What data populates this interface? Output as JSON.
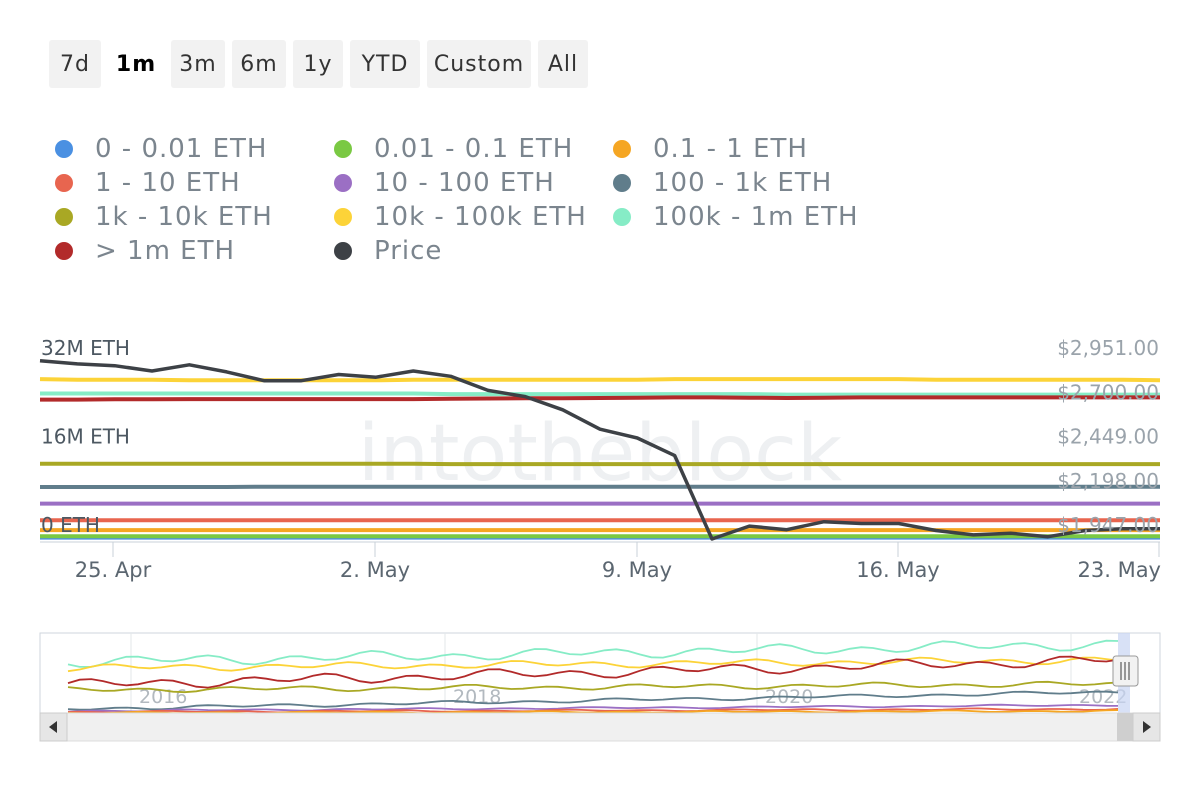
{
  "range_buttons": [
    {
      "label": "7d",
      "active": false
    },
    {
      "label": "1m",
      "active": true
    },
    {
      "label": "3m",
      "active": false
    },
    {
      "label": "6m",
      "active": false
    },
    {
      "label": "1y",
      "active": false
    },
    {
      "label": "YTD",
      "active": false
    },
    {
      "label": "Custom",
      "active": false
    },
    {
      "label": "All",
      "active": false
    }
  ],
  "watermark": "intotheblock",
  "chart_data": {
    "type": "line",
    "legend_placement": "top",
    "grid": false,
    "x_ticks": [
      "25. Apr",
      "2. May",
      "9. May",
      "16. May",
      "23. May"
    ],
    "y_left": {
      "ticks": [
        "0 ETH",
        "16M ETH",
        "32M ETH"
      ],
      "range": [
        0,
        32000000
      ]
    },
    "y_right": {
      "ticks": [
        "$1,947.00",
        "$2,198.00",
        "$2,449.00",
        "$2,700.00",
        "$2,951.00"
      ],
      "range": [
        1947,
        2951
      ]
    },
    "series": [
      {
        "name": "0 - 0.01 ETH",
        "color": "#4a90e2",
        "axis": "left",
        "values": [
          250000,
          250000,
          250000,
          250000,
          250000,
          250000,
          250000,
          250000,
          250000,
          250000,
          250000,
          250000,
          250000,
          250000,
          250000,
          250000,
          250000,
          250000,
          250000,
          250000,
          250000,
          250000,
          250000,
          250000,
          250000,
          250000,
          250000,
          250000,
          250000,
          250000,
          250000
        ]
      },
      {
        "name": "0.01 - 0.1 ETH",
        "color": "#7ac943",
        "axis": "left",
        "values": [
          500000,
          500000,
          500000,
          500000,
          500000,
          500000,
          500000,
          500000,
          500000,
          500000,
          500000,
          500000,
          500000,
          500000,
          500000,
          500000,
          500000,
          500000,
          500000,
          500000,
          500000,
          500000,
          500000,
          500000,
          500000,
          500000,
          500000,
          500000,
          500000,
          500000,
          500000
        ]
      },
      {
        "name": "0.1 - 1 ETH",
        "color": "#f5a623",
        "axis": "left",
        "values": [
          1600000,
          1600000,
          1600000,
          1600000,
          1600000,
          1600000,
          1600000,
          1600000,
          1600000,
          1600000,
          1600000,
          1600000,
          1600000,
          1600000,
          1600000,
          1600000,
          1600000,
          1600000,
          1600000,
          1600000,
          1600000,
          1600000,
          1600000,
          1600000,
          1600000,
          1600000,
          1600000,
          1600000,
          1600000,
          1600000,
          1600000
        ]
      },
      {
        "name": "1 - 10 ETH",
        "color": "#e8654f",
        "axis": "left",
        "values": [
          3400000,
          3400000,
          3400000,
          3400000,
          3400000,
          3400000,
          3400000,
          3400000,
          3400000,
          3400000,
          3400000,
          3400000,
          3400000,
          3400000,
          3400000,
          3400000,
          3400000,
          3400000,
          3400000,
          3400000,
          3400000,
          3400000,
          3400000,
          3400000,
          3400000,
          3400000,
          3400000,
          3400000,
          3400000,
          3400000,
          3400000
        ]
      },
      {
        "name": "10 - 100 ETH",
        "color": "#9b6fc4",
        "axis": "left",
        "values": [
          6400000,
          6400000,
          6400000,
          6400000,
          6400000,
          6400000,
          6400000,
          6400000,
          6400000,
          6400000,
          6400000,
          6400000,
          6400000,
          6400000,
          6400000,
          6400000,
          6400000,
          6400000,
          6400000,
          6400000,
          6400000,
          6400000,
          6400000,
          6400000,
          6400000,
          6400000,
          6400000,
          6400000,
          6400000,
          6400000,
          6400000
        ]
      },
      {
        "name": "100 - 1k ETH",
        "color": "#607d8b",
        "axis": "left",
        "values": [
          9400000,
          9400000,
          9400000,
          9400000,
          9400000,
          9400000,
          9450000,
          9450000,
          9450000,
          9450000,
          9450000,
          9450000,
          9450000,
          9450000,
          9450000,
          9450000,
          9450000,
          9450000,
          9450000,
          9450000,
          9450000,
          9450000,
          9450000,
          9450000,
          9450000,
          9450000,
          9450000,
          9450000,
          9450000,
          9450000,
          9450000
        ]
      },
      {
        "name": "1k - 10k ETH",
        "color": "#a9a824",
        "axis": "left",
        "values": [
          13600000,
          13600000,
          13600000,
          13600000,
          13600000,
          13600000,
          13600000,
          13600000,
          13600000,
          13600000,
          13600000,
          13550000,
          13550000,
          13550000,
          13550000,
          13550000,
          13550000,
          13550000,
          13550000,
          13550000,
          13550000,
          13550000,
          13550000,
          13550000,
          13550000,
          13550000,
          13550000,
          13550000,
          13550000,
          13550000,
          13550000
        ]
      },
      {
        "name": "10k - 100k ETH",
        "color": "#fcd338",
        "axis": "left",
        "values": [
          28900000,
          28800000,
          28800000,
          28800000,
          28700000,
          28700000,
          28700000,
          28700000,
          28700000,
          28700000,
          28800000,
          28800000,
          28800000,
          28800000,
          28800000,
          28800000,
          28800000,
          28900000,
          28900000,
          28900000,
          28900000,
          28900000,
          28900000,
          28900000,
          28800000,
          28800000,
          28800000,
          28800000,
          28800000,
          28800000,
          28700000
        ]
      },
      {
        "name": "100k - 1m ETH",
        "color": "#86ecc6",
        "axis": "left",
        "values": [
          26300000,
          26300000,
          26300000,
          26300000,
          26300000,
          26300000,
          26300000,
          26300000,
          26300000,
          26300000,
          26300000,
          26200000,
          26200000,
          26200000,
          26200000,
          26200000,
          26200000,
          26200000,
          26200000,
          26200000,
          26100000,
          26100000,
          26100000,
          26100000,
          26100000,
          26100000,
          26100000,
          26100000,
          26100000,
          26100000,
          26100000
        ]
      },
      {
        "name": "> 1m ETH",
        "color": "#b22a2a",
        "axis": "left",
        "values": [
          25200000,
          25200000,
          25250000,
          25250000,
          25300000,
          25300000,
          25300000,
          25300000,
          25300000,
          25300000,
          25300000,
          25350000,
          25400000,
          25450000,
          25450000,
          25500000,
          25550000,
          25600000,
          25600000,
          25550000,
          25500000,
          25550000,
          25600000,
          25600000,
          25600000,
          25600000,
          25600000,
          25600000,
          25600000,
          25600000,
          25600000
        ]
      },
      {
        "name": "Price",
        "color": "#3d4146",
        "axis": "right",
        "values": [
          2958,
          2940,
          2930,
          2900,
          2935,
          2895,
          2845,
          2845,
          2880,
          2865,
          2900,
          2870,
          2790,
          2755,
          2680,
          2570,
          2520,
          2420,
          1947,
          2020,
          2000,
          2045,
          2035,
          2035,
          1995,
          1970,
          1980,
          1960,
          1995,
          2005,
          2005
        ]
      }
    ]
  },
  "navigator": {
    "tick_labels": [
      "2016",
      "2018",
      "2020",
      "2022"
    ]
  }
}
